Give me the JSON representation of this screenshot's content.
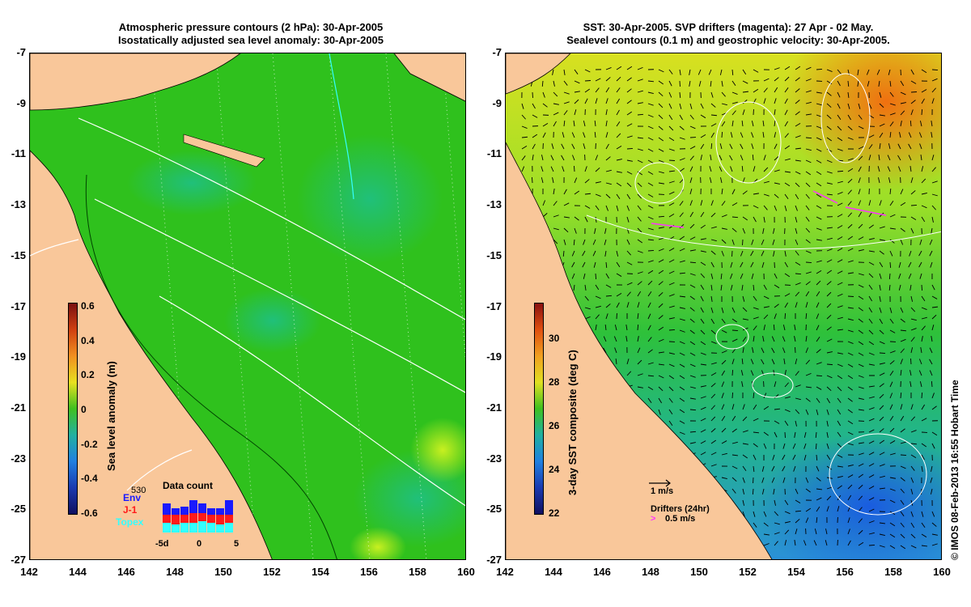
{
  "left": {
    "title_line1": "Atmospheric pressure contours (2 hPa): 30-Apr-2005",
    "title_line2": "Isostatically adjusted sea level anomaly: 30-Apr-2005",
    "colorbar_label": "Sea level anomaly (m)",
    "colorbar_ticks": [
      "0.6",
      "0.4",
      "0.2",
      "0",
      "-0.2",
      "-0.4",
      "-0.6"
    ],
    "data_count": {
      "title": "Data count",
      "max_label": "530",
      "legend": [
        {
          "label": "Env",
          "color": "#1a1aff"
        },
        {
          "label": "J-1",
          "color": "#ff1a1a"
        },
        {
          "label": "Topex",
          "color": "#33ffff"
        }
      ],
      "x_ticks": [
        "-5d",
        "0",
        "5"
      ]
    }
  },
  "right": {
    "title_line1": "SST: 30-Apr-2005. SVP drifters (magenta): 27 Apr - 02 May.",
    "title_line2": "Sealevel contours (0.1 m) and geostrophic velocity: 30-Apr-2005.",
    "colorbar_label": "3-day SST composite (deg C)",
    "colorbar_ticks": [
      "30",
      "28",
      "26",
      "24",
      "22"
    ],
    "velocity_scale": "1 m/s",
    "drifters_label": "Drifters (24hr)",
    "drifter_speed": "0.5 m/s"
  },
  "axes": {
    "y_ticks": [
      "-7",
      "-9",
      "-11",
      "-13",
      "-15",
      "-17",
      "-19",
      "-21",
      "-23",
      "-25",
      "-27"
    ],
    "x_ticks": [
      "142",
      "144",
      "146",
      "148",
      "150",
      "152",
      "154",
      "156",
      "158",
      "160"
    ]
  },
  "credit": "© IMOS 08-Feb-2013 16:55 Hobart Time",
  "colors": {
    "land": "#f9c79a",
    "sea_green": "#22c11f",
    "pressure_contour": "#ffffff",
    "sst_warm": "#f07a10",
    "sst_cool": "#1a7ae0"
  }
}
